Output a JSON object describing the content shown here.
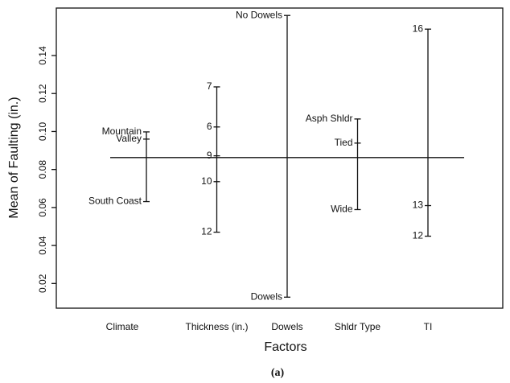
{
  "chart_data": {
    "type": "factor-effects",
    "y_label": "Mean of Faulting (in.)",
    "x_label": "Factors",
    "caption": "(a)",
    "overall_mean": 0.0863,
    "ylim": [
      0.007,
      0.165
    ],
    "yticks": [
      0.02,
      0.04,
      0.06,
      0.08,
      {
        "value": 0.1,
        "label": "0.10"
      },
      0.12,
      0.14
    ],
    "factors": [
      {
        "name": "Climate",
        "levels": [
          "Mountain",
          "Valley",
          "South Coast"
        ],
        "values": [
          0.0998,
          0.096,
          0.0631
        ]
      },
      {
        "name": "Thickness (in.)",
        "levels": [
          "7",
          "6",
          "9",
          "10",
          "12"
        ],
        "values": [
          0.1235,
          0.1024,
          0.0872,
          0.0736,
          0.047
        ]
      },
      {
        "name": "Dowels",
        "levels": [
          "No Dowels",
          "Dowels"
        ],
        "values": [
          0.1611,
          0.0128
        ]
      },
      {
        "name": "Shldr Type",
        "levels": [
          "Asph Shldr",
          "Tied",
          "Wide"
        ],
        "values": [
          0.1066,
          0.0939,
          0.0589
        ]
      },
      {
        "name": "TI",
        "levels": [
          "16",
          "13",
          "12"
        ],
        "values": [
          0.1539,
          0.061,
          0.0449
        ]
      }
    ]
  }
}
